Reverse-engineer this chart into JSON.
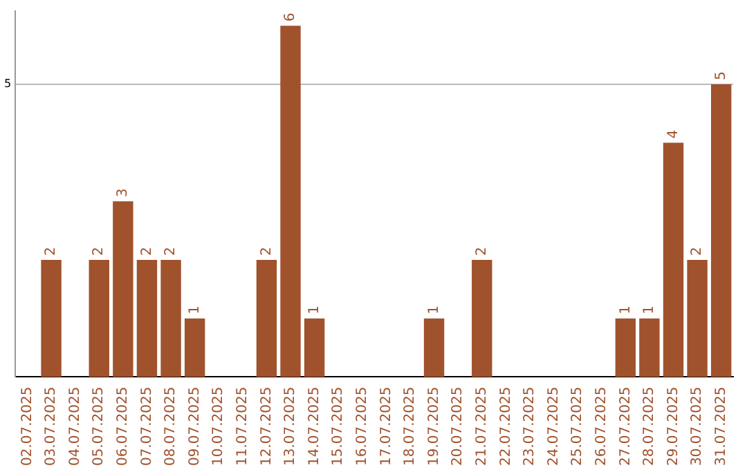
{
  "chart_data": {
    "type": "bar",
    "categories": [
      "02.07.2025",
      "03.07.2025",
      "04.07.2025",
      "05.07.2025",
      "06.07.2025",
      "07.07.2025",
      "08.07.2025",
      "09.07.2025",
      "10.07.2025",
      "11.07.2025",
      "12.07.2025",
      "13.07.2025",
      "14.07.2025",
      "15.07.2025",
      "16.07.2025",
      "17.07.2025",
      "18.07.2025",
      "19.07.2025",
      "20.07.2025",
      "21.07.2025",
      "22.07.2025",
      "23.07.2025",
      "24.07.2025",
      "25.07.2025",
      "26.07.2025",
      "27.07.2025",
      "28.07.2025",
      "29.07.2025",
      "30.07.2025",
      "31.07.2025"
    ],
    "values": [
      0,
      2,
      0,
      2,
      3,
      2,
      2,
      1,
      0,
      0,
      2,
      6,
      1,
      0,
      0,
      0,
      0,
      1,
      0,
      2,
      0,
      0,
      0,
      0,
      0,
      1,
      1,
      4,
      2,
      5
    ],
    "value_labels": [
      null,
      "2",
      null,
      "2",
      "3",
      "2",
      "2",
      "1",
      null,
      null,
      "2",
      "6",
      "1",
      null,
      null,
      null,
      null,
      "1",
      null,
      "2",
      null,
      null,
      null,
      null,
      null,
      "1",
      "1",
      "4",
      "2",
      "5"
    ],
    "color": "#a0522d",
    "ylim": [
      0,
      6.25
    ],
    "yticks": [
      5
    ],
    "grid": "y",
    "legend": false
  }
}
